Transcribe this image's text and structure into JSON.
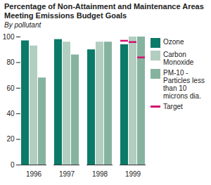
{
  "chart_data": {
    "type": "bar",
    "title": "Percentage of Non-Attainment and Maintenance Areas Meeting Emissions Budget Goals",
    "subtitle": "By pollutant",
    "categories": [
      "1996",
      "1997",
      "1998",
      "1999"
    ],
    "series": [
      {
        "name": "Ozone",
        "color": "#0b7a68",
        "values": [
          97,
          98,
          90,
          94
        ],
        "targets": [
          null,
          null,
          null,
          97
        ]
      },
      {
        "name": "Carbon Monoxide",
        "color": "#b2cec1",
        "values": [
          93,
          96,
          96,
          100
        ],
        "targets": [
          null,
          null,
          null,
          96
        ]
      },
      {
        "name": "PM-10 -Particles less than 10 microns dia.",
        "color": "#86b39f",
        "values": [
          68,
          86,
          96,
          100
        ],
        "targets": [
          null,
          null,
          null,
          84
        ]
      }
    ],
    "target": {
      "name": "Target",
      "color": "#d4106e"
    },
    "ylim": [
      0,
      100
    ],
    "yticks": [
      0,
      20,
      40,
      60,
      80,
      100
    ],
    "grid": false,
    "legend": "right"
  }
}
